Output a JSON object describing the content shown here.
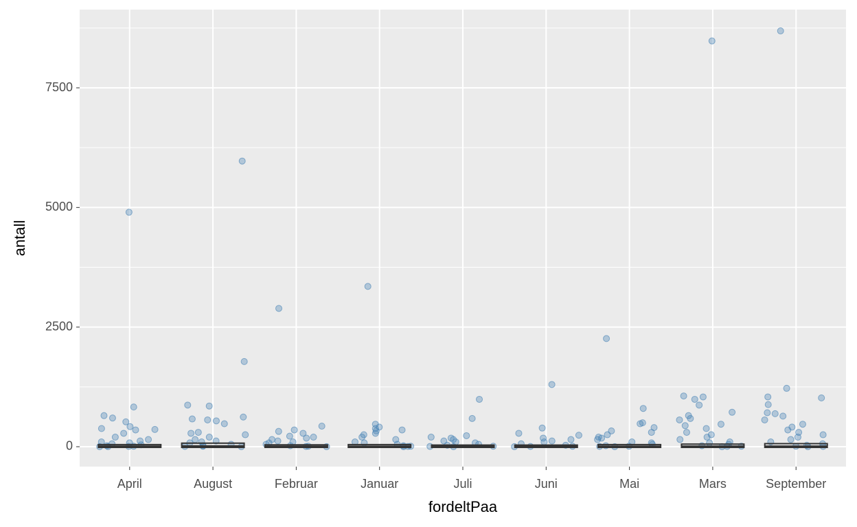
{
  "chart_data": {
    "type": "jitter",
    "x_label": "fordeltPaa",
    "y_label": "antall",
    "categories": [
      "April",
      "August",
      "Februar",
      "Januar",
      "Juli",
      "Juni",
      "Mai",
      "Mars",
      "September"
    ],
    "points": [
      [
        4900,
        830,
        650,
        600,
        520,
        420,
        380,
        360,
        350,
        280,
        200,
        150,
        120,
        100,
        80,
        60,
        40,
        20,
        10,
        5,
        3,
        1
      ],
      [
        5970,
        1780,
        870,
        850,
        620,
        580,
        560,
        540,
        480,
        300,
        280,
        250,
        200,
        150,
        120,
        100,
        80,
        50,
        20,
        10,
        5,
        1
      ],
      [
        2890,
        430,
        350,
        320,
        280,
        220,
        200,
        180,
        150,
        120,
        100,
        80,
        50,
        20,
        10,
        5,
        1
      ],
      [
        3350,
        470,
        410,
        380,
        350,
        330,
        280,
        250,
        200,
        150,
        100,
        80,
        50,
        20,
        10,
        5,
        1
      ],
      [
        990,
        590,
        230,
        200,
        180,
        150,
        120,
        100,
        80,
        50,
        30,
        10,
        5,
        1
      ],
      [
        1300,
        390,
        280,
        240,
        180,
        150,
        120,
        100,
        60,
        30,
        10,
        5,
        1
      ],
      [
        2260,
        800,
        500,
        480,
        400,
        330,
        300,
        250,
        200,
        180,
        150,
        100,
        80,
        50,
        20,
        10,
        5,
        1
      ],
      [
        8480,
        1060,
        1040,
        990,
        870,
        720,
        650,
        590,
        560,
        470,
        440,
        380,
        300,
        250,
        200,
        150,
        100,
        80,
        50,
        20,
        10,
        5,
        1
      ],
      [
        8690,
        1220,
        1040,
        1020,
        880,
        710,
        690,
        640,
        560,
        470,
        410,
        350,
        300,
        250,
        200,
        150,
        100,
        60,
        30,
        10,
        5,
        1
      ]
    ],
    "q1": [
      0,
      0,
      0,
      0,
      0,
      0,
      0,
      0,
      0
    ],
    "median": [
      5,
      10,
      3,
      4,
      2,
      2,
      4,
      5,
      6
    ],
    "q3": [
      30,
      60,
      25,
      30,
      20,
      20,
      30,
      40,
      50
    ],
    "point_color": "#4682b4",
    "box_color": "#333333",
    "ylim": [
      -416,
      9135
    ],
    "yticks": [
      0,
      2500,
      5000,
      7500
    ],
    "minor_yticks": [
      1250,
      3750,
      6250,
      8750
    ],
    "grid": true
  }
}
